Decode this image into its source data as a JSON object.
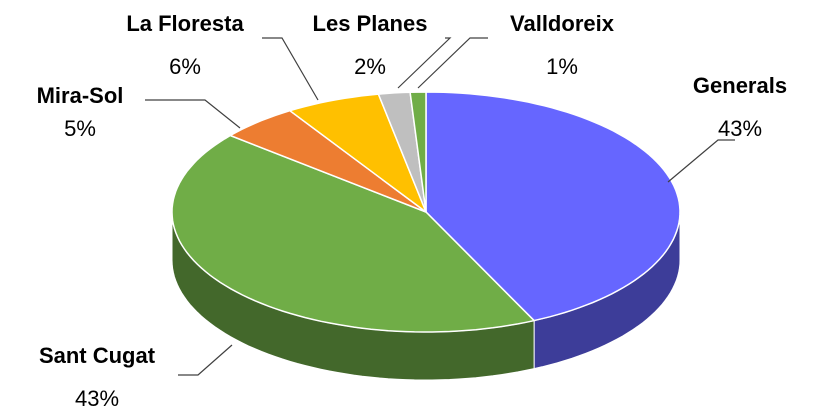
{
  "chart_data": {
    "type": "pie",
    "categories": [
      "Generals",
      "Sant Cugat",
      "Mira-Sol",
      "La Floresta",
      "Les Planes",
      "Valldoreix"
    ],
    "values": [
      43,
      43,
      5,
      6,
      2,
      1
    ],
    "value_labels": [
      "43%",
      "43%",
      "5%",
      "6%",
      "2%",
      "1%"
    ],
    "colors": [
      "#6666ff",
      "#70ad47",
      "#ed7d31",
      "#ffc000",
      "#bfbfbf",
      "#70ad47"
    ]
  }
}
